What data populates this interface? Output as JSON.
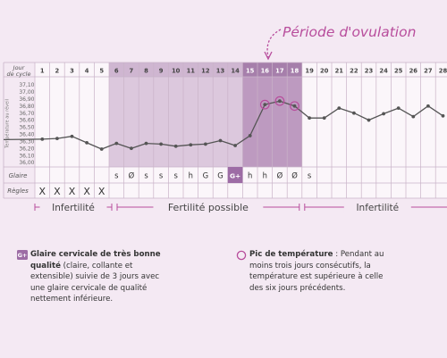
{
  "ovulation_label": "Période d'ovulation",
  "header": {
    "cycle_day_label_1": "Jour",
    "cycle_day_label_2": "de cycle"
  },
  "days": [
    "1",
    "2",
    "3",
    "4",
    "5",
    "6",
    "7",
    "8",
    "9",
    "10",
    "11",
    "12",
    "13",
    "14",
    "15",
    "16",
    "17",
    "18",
    "19",
    "20",
    "21",
    "22",
    "23",
    "24",
    "25",
    "26",
    "27",
    "28"
  ],
  "temperature_axis_label": "Température au réveil",
  "temperature_ticks": [
    "37,10",
    "37,00",
    "36,90",
    "36,80",
    "36,70",
    "36,60",
    "36,50",
    "36,40",
    "36,30",
    "36,20",
    "36,10",
    "36,00"
  ],
  "rows": {
    "glaire_label": "Glaire",
    "glaire": [
      "",
      "",
      "",
      "",
      "",
      "s",
      "Ø",
      "s",
      "s",
      "s",
      "h",
      "G",
      "G",
      "G+",
      "h",
      "h",
      "Ø",
      "Ø",
      "s",
      "",
      "",
      "",
      "",
      "",
      "",
      "",
      "",
      ""
    ],
    "regles_label": "Règles",
    "regles": [
      "X",
      "X",
      "X",
      "X",
      "X",
      "",
      "",
      "",
      "",
      "",
      "",
      "",
      "",
      "",
      "",
      "",
      "",
      "",
      "",
      "",
      "",
      "",
      "",
      "",
      "",
      "",
      "",
      ""
    ]
  },
  "phases": {
    "infertile_1": "Infertilité",
    "fertile": "Fertilité possible",
    "infertile_2": "Infertilité"
  },
  "legend": {
    "left_icon": "G+",
    "left_title_1": "Glaire cervicale de très bonne",
    "left_title_2": "qualité",
    "left_text_1": " (claire, collante et",
    "left_text_2": "extensible) suivie de 3 jours avec",
    "left_text_3": "une glaire cervicale de qualité",
    "left_text_4": "nettement inférieure.",
    "right_title": "Pic de température",
    "right_text_1": " : Pendant au",
    "right_text_2": "moins trois jours consécutifs, la",
    "right_text_3": "température est supérieure à celle",
    "right_text_4": "des six jours précédents."
  },
  "colors": {
    "background": "#f4e9f3",
    "fertile_band": "#dcc8dd",
    "ovulation_band": "#bd9ac0",
    "peak_highlight": "#9d6ca5",
    "accent": "#b84d9c",
    "curve": "#555555"
  },
  "chart_data": {
    "type": "line",
    "x": [
      1,
      2,
      3,
      4,
      5,
      6,
      7,
      8,
      9,
      10,
      11,
      12,
      13,
      14,
      15,
      16,
      17,
      18,
      19,
      20,
      21,
      22,
      23,
      24,
      25,
      26,
      27,
      28
    ],
    "values": [
      36.33,
      36.34,
      36.37,
      36.28,
      36.19,
      36.27,
      36.2,
      36.27,
      36.26,
      36.23,
      36.25,
      36.26,
      36.31,
      36.24,
      36.38,
      36.82,
      36.87,
      36.8,
      36.63,
      36.63,
      36.77,
      36.7,
      36.6,
      36.69,
      36.77,
      36.65,
      36.8,
      36.66
    ],
    "temperature_peaks": [
      16,
      17,
      18
    ],
    "ylim": [
      36.0,
      37.1
    ],
    "xlabel": "Jour de cycle",
    "ylabel": "Température au réveil",
    "grid": true
  }
}
